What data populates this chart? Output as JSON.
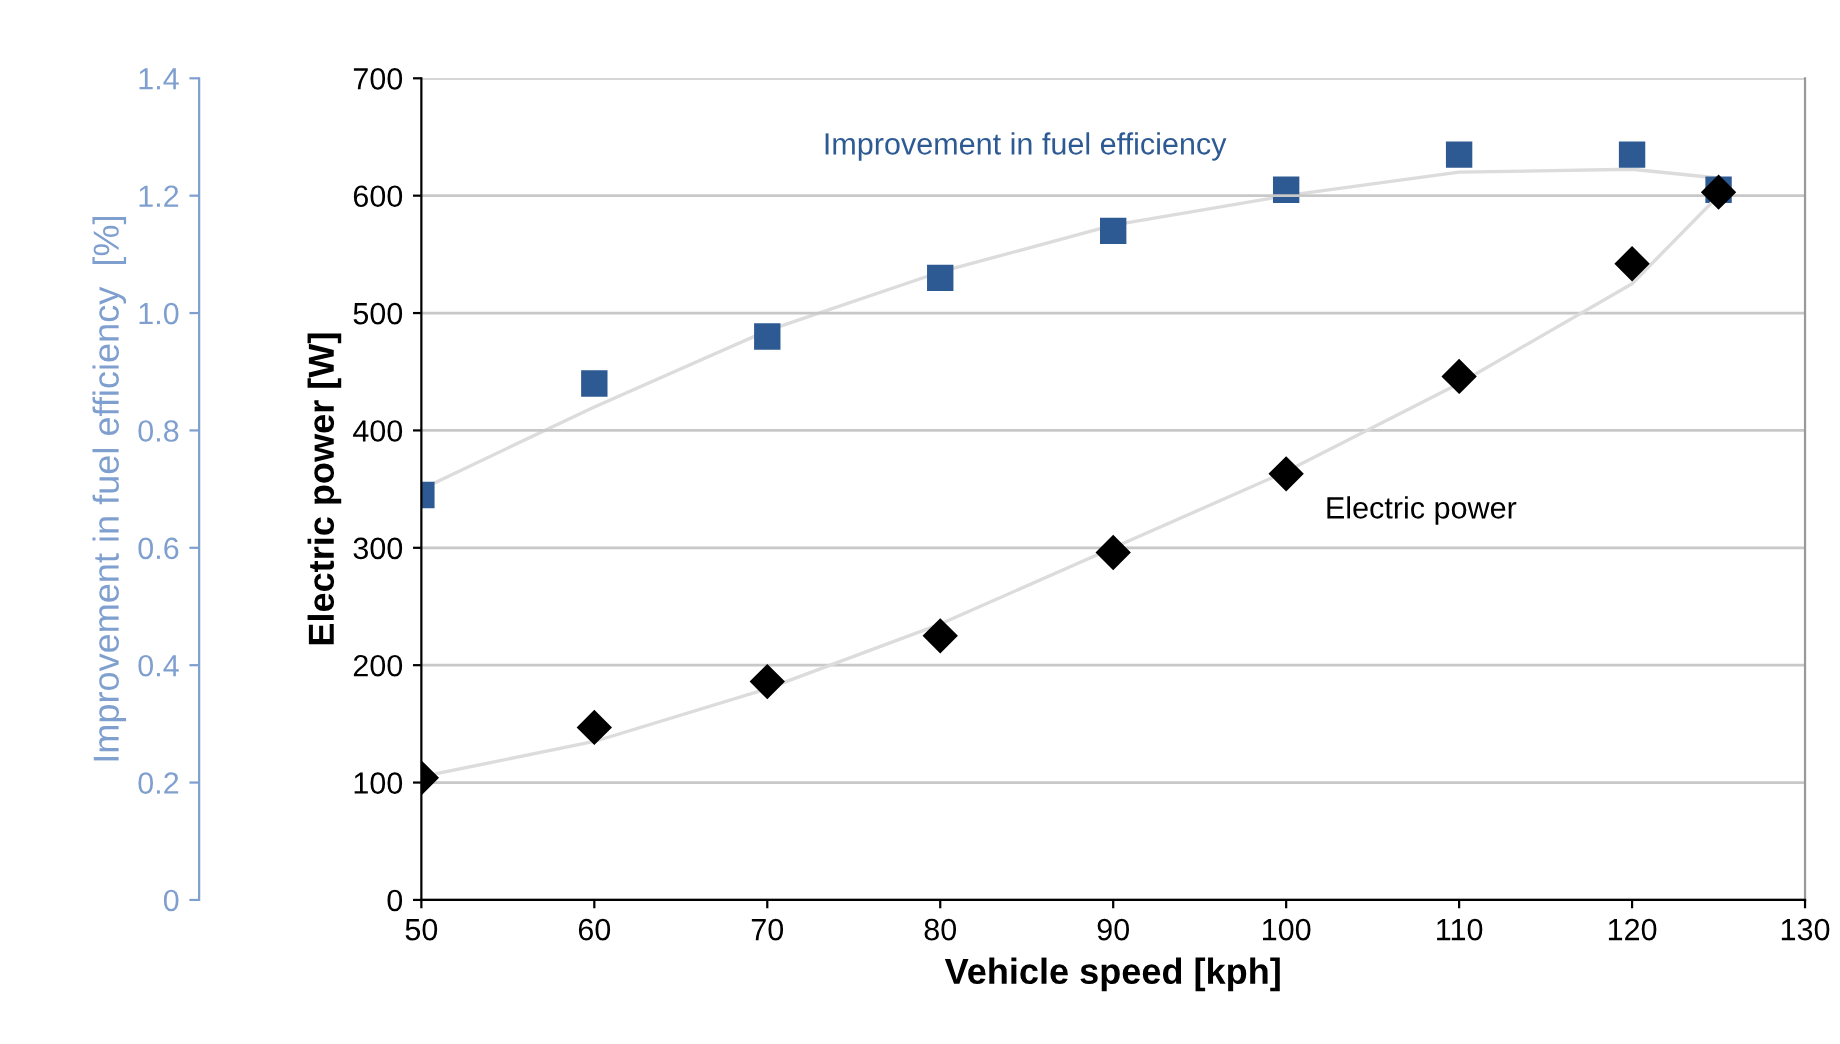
{
  "chart_data": {
    "type": "scatter",
    "xlabel": "Vehicle speed [kph]",
    "ylabel": "Electric power [W]",
    "y2label": "Improvement in fuel efficiency  [%]",
    "x": [
      50,
      60,
      70,
      80,
      90,
      100,
      110,
      120,
      125
    ],
    "xlim": [
      50,
      130
    ],
    "xticks": [
      50,
      60,
      70,
      80,
      90,
      100,
      110,
      120,
      130
    ],
    "ylim": [
      0,
      700
    ],
    "yticks": [
      0,
      100,
      200,
      300,
      400,
      500,
      600,
      700
    ],
    "y2lim": [
      0,
      1.4
    ],
    "y2ticks": [
      0,
      0.2,
      0.4,
      0.6,
      0.8,
      {
        "value": 1,
        "label": "1.0"
      },
      1.2,
      1.4
    ],
    "grid": "y",
    "legend": false,
    "series": [
      {
        "type": "line",
        "axis": "y2",
        "color": "#dcdcdc",
        "marker": "none",
        "x": [
          50,
          60,
          70,
          80,
          90,
          100,
          110,
          120,
          125
        ],
        "values": [
          0.7,
          0.84,
          0.97,
          1.07,
          1.15,
          1.2,
          1.24,
          1.245,
          1.23
        ]
      },
      {
        "type": "line",
        "color": "#dcdcdc",
        "marker": "none",
        "x": [
          50,
          60,
          70,
          80,
          90,
          100,
          110,
          120,
          125
        ],
        "values": [
          105,
          135,
          180,
          235,
          300,
          365,
          440,
          525,
          600
        ]
      },
      {
        "name": "Improvement in fuel efficiency",
        "axis": "y2",
        "color": "#2e5a94",
        "marker": "square",
        "values": [
          0.69,
          0.88,
          0.96,
          1.06,
          1.14,
          1.21,
          1.27,
          1.27,
          1.21
        ]
      },
      {
        "name": "Electric power",
        "color": "#000000",
        "marker": "diamond",
        "values": [
          104,
          147,
          186,
          225,
          296,
          363,
          446,
          542,
          603
        ]
      }
    ]
  }
}
